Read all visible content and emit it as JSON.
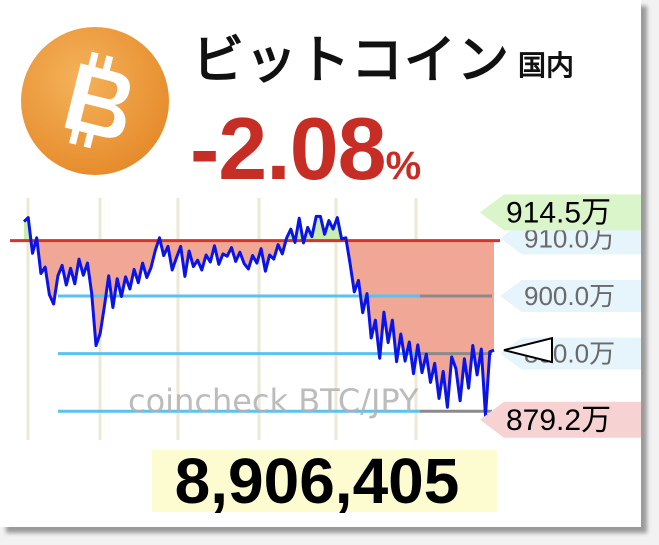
{
  "header": {
    "title": "ビットコイン",
    "region": "国内",
    "change_value": "-2.08",
    "change_unit": "%",
    "logo_color": "#f09b3a"
  },
  "price": {
    "value": "8,906,405",
    "background": "#fdfbd0"
  },
  "chart_data": {
    "type": "line",
    "watermark": "coincheck BTC/JPY",
    "unit": "万",
    "ylim": [
      875,
      917
    ],
    "reference_level": 909.6,
    "high_label": "914.5万",
    "low_label": "879.2万",
    "current_level": 890.6,
    "tick_labels": [
      "910.0万",
      "900.0万",
      "890.0万"
    ],
    "colors": {
      "line": "#0a14e6",
      "reference": "#d6332a",
      "fill_below": "#f1a795",
      "fill_above": "#c9ecaf",
      "grid": "#5ac2ee",
      "high_tag": "#d9f5c9",
      "low_tag": "#f6d2d2",
      "tick_tag": "#e6f4fb"
    },
    "series": [
      {
        "values": [
          912.9,
          913.6,
          907.4,
          910.1,
          903.9,
          905.0,
          900.2,
          898.6,
          903.5,
          905.3,
          901.9,
          904.8,
          902.1,
          906.4,
          903.6,
          905.7,
          900.4,
          891.4,
          893.5,
          898.3,
          903.5,
          898.0,
          903.0,
          899.9,
          903.3,
          901.2,
          904.6,
          902.3,
          905.7,
          903.2,
          904.9,
          907.9,
          910.1,
          907.0,
          908.6,
          904.5,
          906.6,
          908.6,
          903.4,
          907.8,
          905.1,
          906.2,
          904.5,
          907.1,
          905.9,
          908.7,
          905.5,
          907.3,
          906.9,
          908.4,
          906.0,
          907.6,
          905.6,
          904.7,
          907.0,
          905.7,
          908.2,
          904.3,
          907.1,
          906.4,
          908.9,
          907.3,
          910.0,
          911.6,
          909.3,
          913.5,
          909.2,
          911.9,
          910.3,
          913.8,
          913.8,
          910.7,
          913.1,
          911.6,
          913.6,
          909.9,
          910.1,
          905.7,
          900.7,
          902.7,
          897.1,
          900.4,
          892.7,
          895.8,
          889.2,
          897.2,
          891.9,
          895.8,
          888.6,
          893.4,
          888.7,
          892.0,
          886.5,
          891.5,
          886.7,
          889.9,
          885.0,
          888.3,
          882.2,
          886.9,
          880.7,
          889.4,
          887.4,
          881.8,
          889.1,
          884.0,
          891.4,
          886.3,
          890.8,
          879.2,
          890.3,
          890.6
        ]
      }
    ]
  }
}
